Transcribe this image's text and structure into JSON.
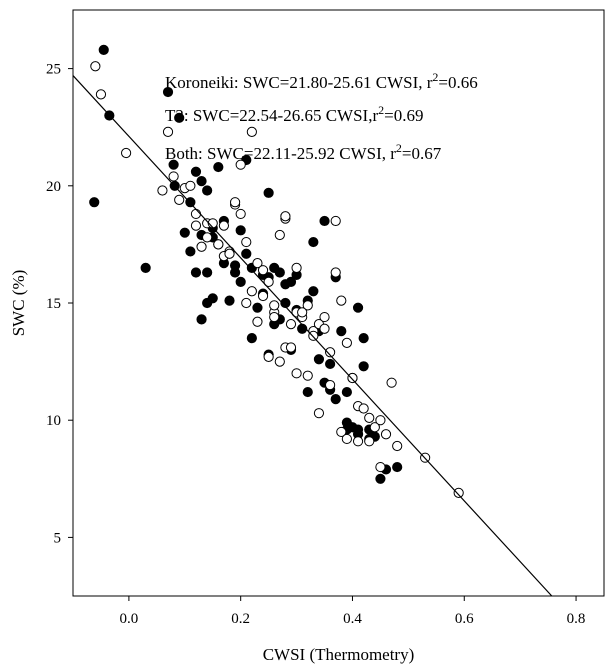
{
  "chart_data": {
    "type": "scatter",
    "xlabel": "CWSI (Thermometry)",
    "ylabel": "SWC (%)",
    "xlim": [
      -0.1,
      0.85
    ],
    "ylim": [
      2.5,
      27.5
    ],
    "xticks": [
      "0.0",
      "0.2",
      "0.4",
      "0.6",
      "0.8"
    ],
    "xtick_values": [
      0.0,
      0.2,
      0.4,
      0.6,
      0.8
    ],
    "yticks": [
      "5",
      "10",
      "15",
      "20",
      "25"
    ],
    "ytick_values": [
      5,
      10,
      15,
      20,
      25
    ],
    "annotations": [
      {
        "pre": "Koroneiki: SWC=21.80-25.61 CWSI, r",
        "sup": "2",
        "post": "=0.66"
      },
      {
        "pre": "T2: SWC=22.54-26.65 CWSI,r",
        "sup": "2",
        "post": "=0.69"
      },
      {
        "pre": "Both: SWC=22.11-25.92 CWSI, r",
        "sup": "2",
        "post": "=0.67"
      }
    ],
    "fit_line": {
      "intercept": 22.11,
      "slope": -25.92
    },
    "series": [
      {
        "marker": "filled",
        "x": [
          -0.045,
          -0.062,
          -0.035,
          0.07,
          0.09,
          0.03,
          0.082,
          0.11,
          0.12,
          0.13,
          0.14,
          0.15,
          0.16,
          0.17,
          0.13,
          0.14,
          0.12,
          0.15,
          0.19,
          0.2,
          0.22,
          0.18,
          0.21,
          0.24,
          0.25,
          0.23,
          0.27,
          0.26,
          0.28,
          0.29,
          0.3,
          0.22,
          0.25,
          0.27,
          0.29,
          0.31,
          0.32,
          0.33,
          0.34,
          0.35,
          0.36,
          0.37,
          0.38,
          0.39,
          0.4,
          0.41,
          0.42,
          0.43,
          0.4,
          0.41,
          0.44,
          0.45,
          0.46,
          0.48,
          0.42,
          0.39,
          0.36,
          0.34,
          0.32,
          0.24,
          0.26,
          0.21,
          0.19,
          0.17,
          0.13,
          0.11,
          0.1,
          0.25,
          0.15,
          0.08,
          0.28,
          0.33,
          0.37,
          0.3,
          0.35,
          0.2,
          0.14,
          0.39,
          0.41,
          0.43
        ],
        "y": [
          25.8,
          19.3,
          23.0,
          24.0,
          22.9,
          16.5,
          20.0,
          19.3,
          20.6,
          20.2,
          19.8,
          17.8,
          20.8,
          18.5,
          17.9,
          16.3,
          16.3,
          15.2,
          16.3,
          15.9,
          16.5,
          15.1,
          21.1,
          15.4,
          16.1,
          14.8,
          16.3,
          14.1,
          15.8,
          15.9,
          14.7,
          13.5,
          12.8,
          14.3,
          13.0,
          13.9,
          15.1,
          15.5,
          13.8,
          11.6,
          12.4,
          10.9,
          13.8,
          9.6,
          9.7,
          9.6,
          12.3,
          9.2,
          11.8,
          14.8,
          9.3,
          7.5,
          7.9,
          8.0,
          13.5,
          11.2,
          11.3,
          12.6,
          11.2,
          16.2,
          16.5,
          17.1,
          16.6,
          16.7,
          14.3,
          17.2,
          18.0,
          19.7,
          18.2,
          20.9,
          15.0,
          17.6,
          16.1,
          16.2,
          18.5,
          18.1,
          15.0,
          9.9,
          9.4,
          9.6
        ]
      },
      {
        "marker": "open",
        "x": [
          -0.06,
          -0.05,
          -0.005,
          0.08,
          0.07,
          0.1,
          0.09,
          0.06,
          0.12,
          0.14,
          0.16,
          0.17,
          0.18,
          0.19,
          0.2,
          0.21,
          0.22,
          0.23,
          0.24,
          0.25,
          0.26,
          0.27,
          0.28,
          0.29,
          0.3,
          0.31,
          0.32,
          0.33,
          0.34,
          0.35,
          0.36,
          0.37,
          0.38,
          0.39,
          0.4,
          0.41,
          0.42,
          0.43,
          0.44,
          0.45,
          0.46,
          0.47,
          0.48,
          0.53,
          0.59,
          0.22,
          0.24,
          0.26,
          0.28,
          0.3,
          0.32,
          0.34,
          0.36,
          0.38,
          0.15,
          0.17,
          0.13,
          0.11,
          0.25,
          0.27,
          0.29,
          0.31,
          0.33,
          0.35,
          0.37,
          0.39,
          0.41,
          0.43,
          0.45,
          0.21,
          0.23,
          0.19,
          0.26,
          0.28,
          0.3,
          0.12,
          0.14,
          0.16,
          0.18,
          0.2
        ],
        "y": [
          25.1,
          23.9,
          21.4,
          20.4,
          22.3,
          19.9,
          19.4,
          19.8,
          18.8,
          18.4,
          17.5,
          18.3,
          17.2,
          19.2,
          18.8,
          17.6,
          22.3,
          16.7,
          16.4,
          15.9,
          14.6,
          17.9,
          18.6,
          14.1,
          14.6,
          14.4,
          14.9,
          13.8,
          14.1,
          14.4,
          12.9,
          18.5,
          15.1,
          13.3,
          11.8,
          10.6,
          10.5,
          9.1,
          9.7,
          8.0,
          9.4,
          11.6,
          8.9,
          8.4,
          6.9,
          15.5,
          15.3,
          14.4,
          13.1,
          12.0,
          11.9,
          10.3,
          11.5,
          9.5,
          18.4,
          17.0,
          17.4,
          20.0,
          12.7,
          12.5,
          13.1,
          14.6,
          13.6,
          13.9,
          16.3,
          9.2,
          9.1,
          10.1,
          10.0,
          15.0,
          14.2,
          19.3,
          14.9,
          18.7,
          16.5,
          18.3,
          17.8,
          17.5,
          17.1,
          20.9
        ]
      }
    ]
  }
}
